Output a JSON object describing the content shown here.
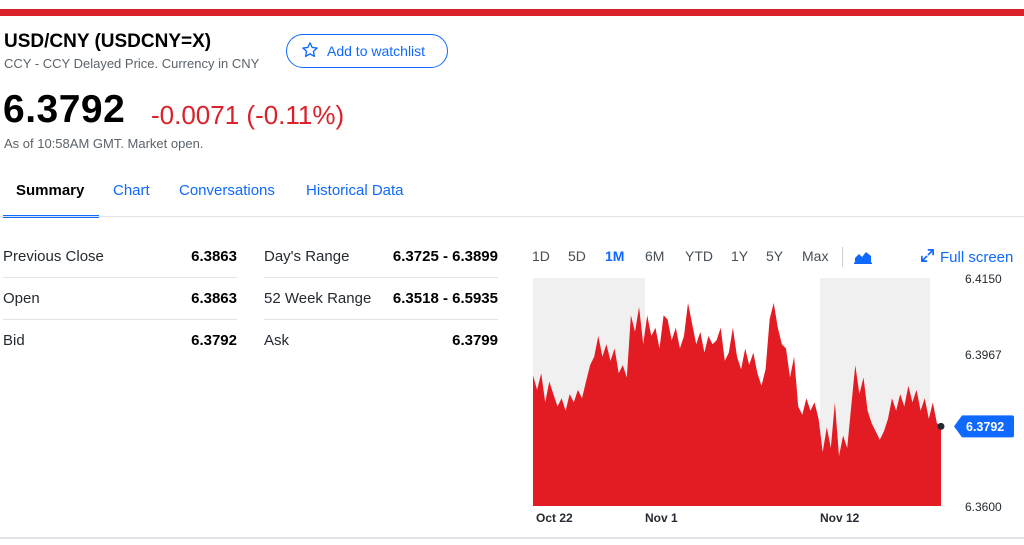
{
  "header": {
    "title": "USD/CNY (USDCNY=X)",
    "subtitle": "CCY - CCY Delayed Price. Currency in CNY",
    "watchlist_label": "Add to watchlist",
    "price": "6.3792",
    "change": "-0.0071 (-0.11%)",
    "as_of": "As of 10:58AM GMT. Market open."
  },
  "tabs": [
    {
      "label": "Summary",
      "active": true
    },
    {
      "label": "Chart"
    },
    {
      "label": "Conversations"
    },
    {
      "label": "Historical Data"
    }
  ],
  "stats_left": [
    {
      "label": "Previous Close",
      "value": "6.3863"
    },
    {
      "label": "Open",
      "value": "6.3863"
    },
    {
      "label": "Bid",
      "value": "6.3792"
    }
  ],
  "stats_mid": [
    {
      "label": "Day's Range",
      "value": "6.3725 - 6.3899"
    },
    {
      "label": "52 Week Range",
      "value": "6.3518 - 6.5935"
    },
    {
      "label": "Ask",
      "value": "6.3799"
    }
  ],
  "chart_controls": {
    "ranges": [
      "1D",
      "5D",
      "1M",
      "6M",
      "YTD",
      "1Y",
      "5Y",
      "Max"
    ],
    "active_range": "1M",
    "fullscreen_label": "Full screen"
  },
  "colors": {
    "accent": "#0f69ff",
    "negative": "#d9222a",
    "text": "#232a31"
  },
  "chart_data": {
    "type": "area",
    "x_ticks": [
      "Oct 22",
      "Nov 1",
      "Nov 12"
    ],
    "y_ticks": [
      "6.4150",
      "6.3967",
      "6.3600"
    ],
    "ylim": [
      6.36,
      6.415
    ],
    "current_label": "6.3792",
    "current_value": 6.3792,
    "values": [
      6.3915,
      6.388,
      6.392,
      6.385,
      6.39,
      6.387,
      6.384,
      6.386,
      6.383,
      6.387,
      6.385,
      6.388,
      6.386,
      6.39,
      6.394,
      6.396,
      6.401,
      6.396,
      6.399,
      6.395,
      6.398,
      6.392,
      6.394,
      6.391,
      6.406,
      6.402,
      6.408,
      6.399,
      6.406,
      6.401,
      6.403,
      6.398,
      6.406,
      6.405,
      6.4,
      6.403,
      6.398,
      6.401,
      6.409,
      6.404,
      6.399,
      6.402,
      6.397,
      6.401,
      6.399,
      6.4,
      6.403,
      6.395,
      6.397,
      6.403,
      6.396,
      6.393,
      6.398,
      6.394,
      6.397,
      6.392,
      6.389,
      6.393,
      6.405,
      6.409,
      6.403,
      6.399,
      6.398,
      6.391,
      6.396,
      6.384,
      6.382,
      6.386,
      6.383,
      6.385,
      6.381,
      6.373,
      6.379,
      6.374,
      6.385,
      6.372,
      6.377,
      6.374,
      6.384,
      6.394,
      6.387,
      6.391,
      6.383,
      6.38,
      6.378,
      6.376,
      6.378,
      6.381,
      6.386,
      6.383,
      6.387,
      6.384,
      6.389,
      6.385,
      6.388,
      6.383,
      6.386,
      6.381,
      6.385,
      6.38,
      6.3792
    ]
  }
}
